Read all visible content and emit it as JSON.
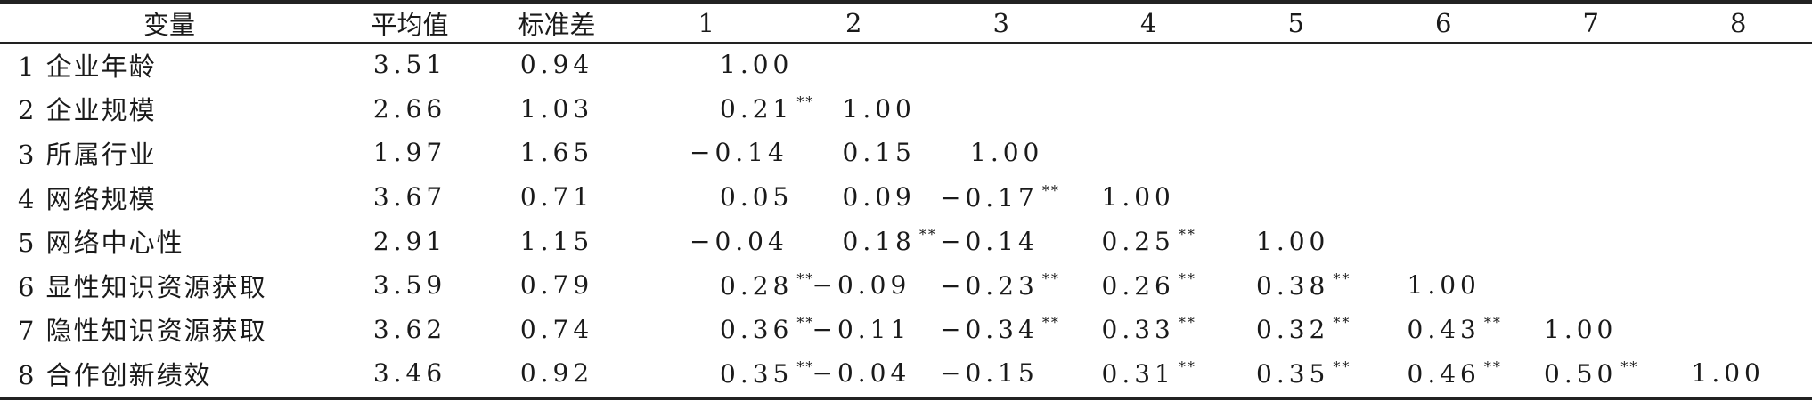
{
  "table": {
    "headers": [
      "变量",
      "平均值",
      "标准差",
      "1",
      "2",
      "3",
      "4",
      "5",
      "6",
      "7",
      "8"
    ],
    "rows": [
      {
        "name": "1 企业年龄",
        "mean": "3.51",
        "sd": "0.94",
        "r": [
          {
            "v": "1.00",
            "s": ""
          }
        ]
      },
      {
        "name": "2 企业规模",
        "mean": "2.66",
        "sd": "1.03",
        "r": [
          {
            "v": "0.21",
            "s": "**"
          },
          {
            "v": "1.00",
            "s": ""
          }
        ]
      },
      {
        "name": "3 所属行业",
        "mean": "1.97",
        "sd": "1.65",
        "r": [
          {
            "v": "−0.14",
            "s": ""
          },
          {
            "v": "0.15",
            "s": ""
          },
          {
            "v": "1.00",
            "s": ""
          }
        ]
      },
      {
        "name": "4 网络规模",
        "mean": "3.67",
        "sd": "0.71",
        "r": [
          {
            "v": "0.05",
            "s": ""
          },
          {
            "v": "0.09",
            "s": ""
          },
          {
            "v": "−0.17",
            "s": "**"
          },
          {
            "v": "1.00",
            "s": ""
          }
        ]
      },
      {
        "name": "5 网络中心性",
        "mean": "2.91",
        "sd": "1.15",
        "r": [
          {
            "v": "−0.04",
            "s": ""
          },
          {
            "v": "0.18",
            "s": "**"
          },
          {
            "v": "−0.14",
            "s": ""
          },
          {
            "v": "0.25",
            "s": "**"
          },
          {
            "v": "1.00",
            "s": ""
          }
        ]
      },
      {
        "name": "6 显性知识资源获取",
        "mean": "3.59",
        "sd": "0.79",
        "r": [
          {
            "v": "0.28",
            "s": "**"
          },
          {
            "v": "−0.09",
            "s": ""
          },
          {
            "v": "−0.23",
            "s": "**"
          },
          {
            "v": "0.26",
            "s": "**"
          },
          {
            "v": "0.38",
            "s": "**"
          },
          {
            "v": "1.00",
            "s": ""
          }
        ]
      },
      {
        "name": "7 隐性知识资源获取",
        "mean": "3.62",
        "sd": "0.74",
        "r": [
          {
            "v": "0.36",
            "s": "**"
          },
          {
            "v": "−0.11",
            "s": ""
          },
          {
            "v": "−0.34",
            "s": "**"
          },
          {
            "v": "0.33",
            "s": "**"
          },
          {
            "v": "0.32",
            "s": "**"
          },
          {
            "v": "0.43",
            "s": "**"
          },
          {
            "v": "1.00",
            "s": ""
          }
        ]
      },
      {
        "name": "8 合作创新绩效",
        "mean": "3.46",
        "sd": "0.92",
        "r": [
          {
            "v": "0.35",
            "s": "**"
          },
          {
            "v": "−0.04",
            "s": ""
          },
          {
            "v": "−0.15",
            "s": ""
          },
          {
            "v": "0.31",
            "s": "**"
          },
          {
            "v": "0.35",
            "s": "**"
          },
          {
            "v": "0.46",
            "s": "**"
          },
          {
            "v": "0.50",
            "s": "**"
          },
          {
            "v": "1.00",
            "s": ""
          }
        ]
      }
    ]
  }
}
